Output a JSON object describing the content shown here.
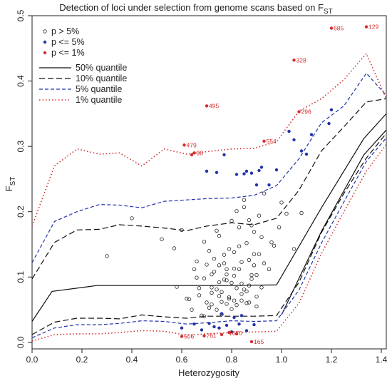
{
  "chart_data": {
    "type": "scatter",
    "title": "Detection of loci under selection from genome scans based on F",
    "title_subscript": "ST",
    "xlabel": "Heterozygosity",
    "ylabel": "F",
    "ylabel_subscript": "ST",
    "xlim": [
      0.0,
      1.42
    ],
    "ylim": [
      -0.01,
      0.5
    ],
    "x_ticks": [
      "0.0",
      "0.2",
      "0.4",
      "0.6",
      "0.8",
      "1.0",
      "1.2",
      "1.4"
    ],
    "y_ticks": [
      "0.0",
      "0.1",
      "0.2",
      "0.3",
      "0.4",
      "0.5"
    ],
    "grid": false,
    "legend_position": "top-left",
    "legend": [
      {
        "label": "p > 5%",
        "kind": "point",
        "style": "open",
        "color": "#222222"
      },
      {
        "label": "p <= 5%",
        "kind": "point",
        "style": "filled",
        "color": "#2233aa"
      },
      {
        "label": "p <= 1%",
        "kind": "point",
        "style": "filled",
        "color": "#d32f2f"
      },
      {
        "label": "50% quantile",
        "kind": "line",
        "color": "#111111",
        "dash": "solid"
      },
      {
        "label": "10% quantile",
        "kind": "line",
        "color": "#111111",
        "dash": "long"
      },
      {
        "label": "5% quantile",
        "kind": "line",
        "color": "#2233aa",
        "dash": "medium"
      },
      {
        "label": "1% quantile",
        "kind": "line",
        "color": "#d32f2f",
        "dash": "dotted"
      }
    ],
    "quantile_lines": [
      {
        "name": "50% quantile upper",
        "color": "#111111",
        "dash": "solid",
        "x": [
          0.0,
          0.08,
          0.26,
          0.44,
          0.62,
          0.8,
          0.98,
          1.16,
          1.33,
          1.42
        ],
        "y": [
          0.032,
          0.078,
          0.087,
          0.087,
          0.087,
          0.087,
          0.088,
          0.206,
          0.312,
          0.35
        ]
      },
      {
        "name": "50% quantile lower",
        "color": "#111111",
        "dash": "solid",
        "x": [
          1.0,
          1.16,
          1.33,
          1.42
        ],
        "y": [
          0.042,
          0.17,
          0.287,
          0.325
        ]
      },
      {
        "name": "10% quantile upper",
        "color": "#111111",
        "dash": "long",
        "x": [
          0.0,
          0.09,
          0.18,
          0.27,
          0.35,
          0.44,
          0.53,
          0.62,
          0.7,
          0.8,
          0.89,
          0.98,
          1.07,
          1.16,
          1.25,
          1.34,
          1.42
        ],
        "y": [
          0.097,
          0.153,
          0.172,
          0.173,
          0.18,
          0.178,
          0.175,
          0.171,
          0.178,
          0.183,
          0.18,
          0.19,
          0.233,
          0.293,
          0.33,
          0.368,
          0.373
        ]
      },
      {
        "name": "10% quantile lower",
        "color": "#111111",
        "dash": "long",
        "x": [
          0.0,
          0.09,
          0.18,
          0.27,
          0.35,
          0.44,
          0.53,
          0.62,
          0.7,
          0.8,
          0.89,
          0.98,
          1.07,
          1.16,
          1.25,
          1.34,
          1.42
        ],
        "y": [
          0.012,
          0.031,
          0.037,
          0.037,
          0.036,
          0.042,
          0.039,
          0.037,
          0.04,
          0.04,
          0.04,
          0.041,
          0.092,
          0.168,
          0.228,
          0.282,
          0.32
        ]
      },
      {
        "name": "5% quantile upper",
        "color": "#2233aa",
        "dash": "medium",
        "x": [
          0.0,
          0.09,
          0.18,
          0.27,
          0.35,
          0.44,
          0.53,
          0.62,
          0.7,
          0.8,
          0.89,
          0.98,
          1.07,
          1.16,
          1.25,
          1.34,
          1.42
        ],
        "y": [
          0.122,
          0.185,
          0.2,
          0.211,
          0.21,
          0.206,
          0.216,
          0.218,
          0.22,
          0.221,
          0.225,
          0.24,
          0.281,
          0.336,
          0.362,
          0.412,
          0.378
        ]
      },
      {
        "name": "5% quantile lower",
        "color": "#2233aa",
        "dash": "medium",
        "x": [
          0.0,
          0.09,
          0.18,
          0.27,
          0.35,
          0.44,
          0.53,
          0.62,
          0.7,
          0.8,
          0.89,
          0.98,
          1.07,
          1.16,
          1.25,
          1.34,
          1.42
        ],
        "y": [
          0.007,
          0.022,
          0.027,
          0.027,
          0.029,
          0.033,
          0.032,
          0.028,
          0.03,
          0.033,
          0.032,
          0.033,
          0.08,
          0.152,
          0.215,
          0.277,
          0.313
        ]
      },
      {
        "name": "1% quantile upper",
        "color": "#d32f2f",
        "dash": "dotted",
        "x": [
          0.0,
          0.09,
          0.18,
          0.27,
          0.35,
          0.44,
          0.53,
          0.62,
          0.7,
          0.8,
          0.89,
          0.98,
          1.07,
          1.16,
          1.25,
          1.34,
          1.42
        ],
        "y": [
          0.178,
          0.27,
          0.296,
          0.288,
          0.29,
          0.27,
          0.296,
          0.288,
          0.292,
          0.296,
          0.297,
          0.307,
          0.354,
          0.373,
          0.402,
          0.442,
          0.373
        ]
      },
      {
        "name": "1% quantile lower",
        "color": "#d32f2f",
        "dash": "dotted",
        "x": [
          0.0,
          0.09,
          0.18,
          0.27,
          0.35,
          0.44,
          0.53,
          0.62,
          0.7,
          0.8,
          0.89,
          0.98,
          1.07,
          1.16,
          1.25,
          1.34,
          1.42
        ],
        "y": [
          0.002,
          0.012,
          0.013,
          0.013,
          0.015,
          0.018,
          0.017,
          0.011,
          0.013,
          0.015,
          0.016,
          0.017,
          0.06,
          0.136,
          0.2,
          0.262,
          0.303
        ]
      }
    ],
    "series": [
      {
        "name": "p > 5%",
        "style": "open",
        "color": "#222222",
        "x": [
          0.3,
          0.4,
          0.52,
          0.57,
          0.58,
          0.6,
          0.62,
          0.64,
          0.66,
          0.67,
          0.69,
          0.7,
          0.71,
          0.72,
          0.73,
          0.74,
          0.75,
          0.76,
          0.77,
          0.78,
          0.79,
          0.8,
          0.81,
          0.82,
          0.83,
          0.84,
          0.85,
          0.86,
          0.87,
          0.88,
          0.89,
          0.9,
          0.91,
          0.92,
          0.93,
          0.95,
          0.97,
          0.99,
          1.0,
          1.02,
          1.05,
          1.08,
          0.68,
          0.72,
          0.75,
          0.77,
          0.79,
          0.81,
          0.83,
          0.85,
          0.87,
          0.89,
          0.91,
          0.74,
          0.76,
          0.78,
          0.8,
          0.82,
          0.84,
          0.86,
          0.88,
          0.9,
          0.92,
          0.65,
          0.67,
          0.69,
          0.71,
          0.73,
          0.75,
          0.77,
          0.79,
          0.81,
          0.83,
          0.85,
          0.87,
          0.89,
          0.7,
          0.72,
          0.74,
          0.76,
          0.78,
          0.8,
          0.82,
          0.84,
          0.86,
          0.88,
          0.63,
          0.66,
          0.69,
          0.72,
          0.75,
          0.78,
          0.81,
          0.84,
          0.87,
          0.9,
          0.93,
          0.96
        ],
        "y": [
          0.132,
          0.19,
          0.158,
          0.144,
          0.085,
          0.172,
          0.067,
          0.05,
          0.124,
          0.072,
          0.098,
          0.061,
          0.14,
          0.084,
          0.108,
          0.05,
          0.163,
          0.077,
          0.121,
          0.095,
          0.069,
          0.186,
          0.113,
          0.057,
          0.147,
          0.09,
          0.207,
          0.078,
          0.126,
          0.103,
          0.169,
          0.055,
          0.135,
          0.084,
          0.228,
          0.112,
          0.148,
          0.176,
          0.214,
          0.197,
          0.143,
          0.198,
          0.041,
          0.058,
          0.092,
          0.134,
          0.067,
          0.102,
          0.176,
          0.081,
          0.061,
          0.118,
          0.194,
          0.081,
          0.043,
          0.112,
          0.051,
          0.083,
          0.064,
          0.152,
          0.097,
          0.07,
          0.161,
          0.112,
          0.083,
          0.154,
          0.053,
          0.128,
          0.071,
          0.096,
          0.143,
          0.064,
          0.112,
          0.218,
          0.087,
          0.135,
          0.119,
          0.076,
          0.171,
          0.062,
          0.104,
          0.091,
          0.201,
          0.123,
          0.06,
          0.179,
          0.066,
          0.099,
          0.04,
          0.104,
          0.118,
          0.059,
          0.138,
          0.074,
          0.187,
          0.103,
          0.121,
          0.153
        ]
      },
      {
        "name": "p <= 5%",
        "style": "filled",
        "color": "#2233aa",
        "x": [
          0.7,
          0.74,
          0.77,
          0.82,
          0.85,
          0.86,
          0.88,
          0.9,
          0.91,
          0.92,
          0.95,
          0.98,
          1.03,
          1.05,
          1.08,
          1.1,
          1.12,
          1.19,
          1.2,
          0.6,
          0.65,
          0.68,
          0.71,
          0.73,
          0.75,
          0.78,
          0.8,
          0.83,
          0.86,
          0.89,
          0.76,
          0.81,
          0.84
        ],
        "y": [
          0.262,
          0.26,
          0.287,
          0.257,
          0.258,
          0.262,
          0.259,
          0.241,
          0.263,
          0.268,
          0.241,
          0.264,
          0.323,
          0.31,
          0.293,
          0.288,
          0.318,
          0.335,
          0.356,
          0.022,
          0.028,
          0.019,
          0.029,
          0.024,
          0.022,
          0.026,
          0.016,
          0.028,
          0.018,
          0.027,
          0.044,
          0.038,
          0.041
        ]
      },
      {
        "name": "p <= 1%",
        "style": "filled",
        "color": "#d32f2f",
        "x": [
          1.2,
          1.34,
          1.05,
          0.7,
          1.07,
          0.93,
          0.61,
          0.65,
          0.64,
          0.6,
          0.69,
          0.88,
          0.76,
          0.79,
          0.82
        ],
        "y": [
          0.481,
          0.483,
          0.432,
          0.362,
          0.353,
          0.308,
          0.302,
          0.29,
          0.287,
          0.009,
          0.01,
          0.001,
          0.012,
          0.015,
          0.013
        ]
      }
    ],
    "annotations": [
      {
        "text": "685",
        "x": 1.2,
        "y": 0.481
      },
      {
        "text": "129",
        "x": 1.34,
        "y": 0.483
      },
      {
        "text": "328",
        "x": 1.05,
        "y": 0.432
      },
      {
        "text": "495",
        "x": 0.7,
        "y": 0.362
      },
      {
        "text": "296",
        "x": 1.07,
        "y": 0.353
      },
      {
        "text": "554",
        "x": 0.93,
        "y": 0.308
      },
      {
        "text": "479",
        "x": 0.61,
        "y": 0.302
      },
      {
        "text": "98",
        "x": 0.65,
        "y": 0.29
      },
      {
        "text": "506",
        "x": 0.6,
        "y": 0.009
      },
      {
        "text": "761",
        "x": 0.69,
        "y": 0.01
      },
      {
        "text": "165",
        "x": 0.88,
        "y": 0.001
      },
      {
        "text": "1070",
        "x": 0.78,
        "y": 0.014
      }
    ]
  }
}
